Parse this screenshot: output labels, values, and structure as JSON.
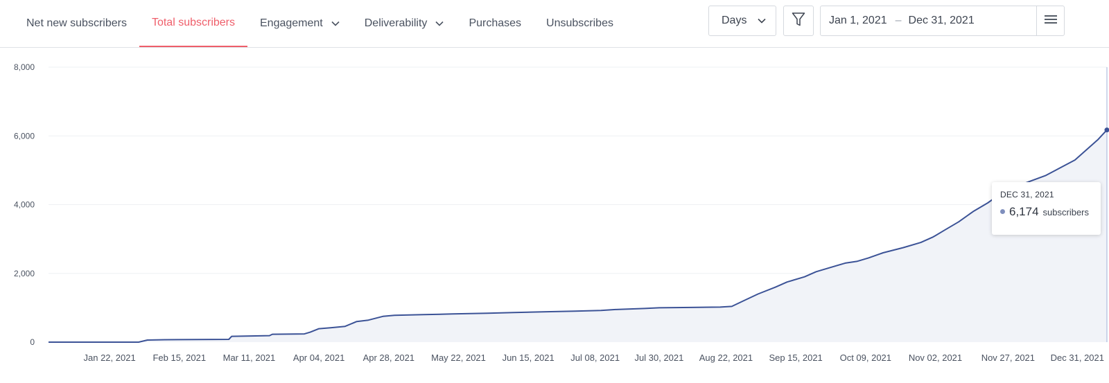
{
  "tabs": [
    {
      "label": "Net new subscribers",
      "active": false,
      "dropdown": false
    },
    {
      "label": "Total subscribers",
      "active": true,
      "dropdown": false
    },
    {
      "label": "Engagement",
      "active": false,
      "dropdown": true
    },
    {
      "label": "Deliverability",
      "active": false,
      "dropdown": true
    },
    {
      "label": "Purchases",
      "active": false,
      "dropdown": false
    },
    {
      "label": "Unsubscribes",
      "active": false,
      "dropdown": false
    }
  ],
  "controls": {
    "interval_value": "Days",
    "date_start": "Jan 1, 2021",
    "date_separator": "–",
    "date_end": "Dec 31, 2021",
    "icons": {
      "interval": "chevron-down-icon",
      "filter": "filter-icon",
      "menu": "hamburger-menu-icon"
    }
  },
  "tooltip": {
    "date": "DEC 31, 2021",
    "value": "6,174",
    "unit": "subscribers"
  },
  "colors": {
    "accent": "#ef5e6a",
    "line": "#3b5296",
    "fill": "#f1f3f8",
    "tooltip_dot": "#7f8fbd"
  },
  "chart_data": {
    "type": "area",
    "ylim": [
      0,
      8000
    ],
    "xlim": [
      "2021-01-01",
      "2021-12-31"
    ],
    "grid": true,
    "y_tick_labels": [
      "0",
      "2,000",
      "4,000",
      "6,000",
      "8,000"
    ],
    "y_ticks": [
      0,
      2000,
      4000,
      6000,
      8000
    ],
    "x_tick_labels": [
      "Jan 22, 2021",
      "Feb 15, 2021",
      "Mar 11, 2021",
      "Apr 04, 2021",
      "Apr 28, 2021",
      "May 22, 2021",
      "Jun 15, 2021",
      "Jul 08, 2021",
      "Jul 30, 2021",
      "Aug 22, 2021",
      "Sep 15, 2021",
      "Oct 09, 2021",
      "Nov 02, 2021",
      "Nov 27, 2021",
      "Dec 31, 2021"
    ],
    "x_ticks": [
      "2021-01-22",
      "2021-02-15",
      "2021-03-11",
      "2021-04-04",
      "2021-04-28",
      "2021-05-22",
      "2021-06-15",
      "2021-07-08",
      "2021-07-30",
      "2021-08-22",
      "2021-09-15",
      "2021-10-09",
      "2021-11-02",
      "2021-11-27",
      "2021-12-31"
    ],
    "series": [
      {
        "x": [
          "2021-01-01",
          "2021-02-01",
          "2021-02-04",
          "2021-02-10",
          "2021-03-04",
          "2021-03-05",
          "2021-03-18",
          "2021-03-19",
          "2021-03-30",
          "2021-04-01",
          "2021-04-04",
          "2021-04-08",
          "2021-04-13",
          "2021-04-17",
          "2021-04-21",
          "2021-04-26",
          "2021-04-30",
          "2021-05-10",
          "2021-05-20",
          "2021-06-01",
          "2021-06-10",
          "2021-06-20",
          "2021-07-01",
          "2021-07-10",
          "2021-07-15",
          "2021-07-25",
          "2021-07-30",
          "2021-08-10",
          "2021-08-20",
          "2021-08-24",
          "2021-08-28",
          "2021-09-02",
          "2021-09-08",
          "2021-09-12",
          "2021-09-18",
          "2021-09-22",
          "2021-09-26",
          "2021-10-02",
          "2021-10-06",
          "2021-10-10",
          "2021-10-15",
          "2021-10-22",
          "2021-10-28",
          "2021-11-01",
          "2021-11-02",
          "2021-11-05",
          "2021-11-10",
          "2021-11-15",
          "2021-11-20",
          "2021-11-25",
          "2021-11-28",
          "2021-12-02",
          "2021-12-10",
          "2021-12-20",
          "2021-12-28",
          "2021-12-31"
        ],
        "y": [
          0,
          0,
          60,
          70,
          80,
          170,
          190,
          230,
          240,
          290,
          390,
          420,
          460,
          600,
          640,
          750,
          780,
          800,
          820,
          840,
          860,
          880,
          900,
          920,
          950,
          980,
          1000,
          1010,
          1020,
          1040,
          1200,
          1400,
          1600,
          1750,
          1900,
          2050,
          2150,
          2300,
          2350,
          2450,
          2600,
          2750,
          2900,
          3050,
          3100,
          3250,
          3500,
          3800,
          4050,
          4350,
          4500,
          4600,
          4850,
          5300,
          5900,
          6174
        ]
      }
    ]
  }
}
